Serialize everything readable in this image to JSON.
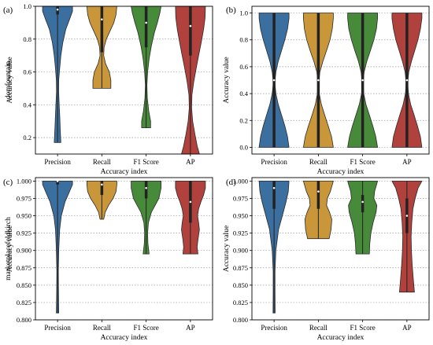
{
  "figure": {
    "ylabel_common": "Accuracy value",
    "xlabel_common": "Accuracy index"
  },
  "chart_data": [
    {
      "type": "violin",
      "panel_label": "(a)",
      "side_label": "domfountain",
      "xlabel": "Accuracy index",
      "ylabel": "Accuracy value",
      "ylim": [
        0.1,
        1.0
      ],
      "yticks": [
        "0.2",
        "0.4",
        "0.6",
        "0.8",
        "1.0"
      ],
      "grid": "horizontal-dotted",
      "categories": [
        "Precision",
        "Recall",
        "F1 Score",
        "AP"
      ],
      "series": [
        {
          "name": "Precision",
          "color": "#3a6f9f",
          "min": 0.17,
          "max": 1.0,
          "q1": 0.95,
          "q3": 1.0,
          "median": 0.98,
          "profile": [
            [
              0.17,
              0.22
            ],
            [
              0.25,
              0.18
            ],
            [
              0.32,
              0.15
            ],
            [
              0.4,
              0.11
            ],
            [
              0.48,
              0.07
            ],
            [
              0.55,
              0.08
            ],
            [
              0.62,
              0.14
            ],
            [
              0.7,
              0.22
            ],
            [
              0.78,
              0.35
            ],
            [
              0.86,
              0.55
            ],
            [
              0.92,
              0.8
            ],
            [
              0.97,
              1.0
            ],
            [
              1.0,
              1.0
            ]
          ]
        },
        {
          "name": "Recall",
          "color": "#c9963a",
          "min": 0.5,
          "max": 1.0,
          "q1": 0.72,
          "q3": 1.0,
          "median": 0.92,
          "profile": [
            [
              0.5,
              0.6
            ],
            [
              0.55,
              0.6
            ],
            [
              0.6,
              0.5
            ],
            [
              0.65,
              0.25
            ],
            [
              0.7,
              0.12
            ],
            [
              0.75,
              0.15
            ],
            [
              0.8,
              0.3
            ],
            [
              0.85,
              0.55
            ],
            [
              0.9,
              0.8
            ],
            [
              0.95,
              0.95
            ],
            [
              1.0,
              1.0
            ]
          ]
        },
        {
          "name": "F1 Score",
          "color": "#478a3a",
          "min": 0.26,
          "max": 1.0,
          "q1": 0.75,
          "q3": 1.0,
          "median": 0.9,
          "profile": [
            [
              0.26,
              0.3
            ],
            [
              0.3,
              0.3
            ],
            [
              0.36,
              0.18
            ],
            [
              0.44,
              0.08
            ],
            [
              0.52,
              0.05
            ],
            [
              0.6,
              0.1
            ],
            [
              0.68,
              0.2
            ],
            [
              0.76,
              0.35
            ],
            [
              0.84,
              0.55
            ],
            [
              0.9,
              0.75
            ],
            [
              0.96,
              0.92
            ],
            [
              1.0,
              1.0
            ]
          ]
        },
        {
          "name": "AP",
          "color": "#b0413c",
          "min": 0.1,
          "max": 1.0,
          "q1": 0.7,
          "q3": 1.0,
          "median": 0.88,
          "profile": [
            [
              0.1,
              0.6
            ],
            [
              0.15,
              0.45
            ],
            [
              0.22,
              0.3
            ],
            [
              0.3,
              0.15
            ],
            [
              0.38,
              0.08
            ],
            [
              0.46,
              0.1
            ],
            [
              0.54,
              0.22
            ],
            [
              0.62,
              0.38
            ],
            [
              0.7,
              0.55
            ],
            [
              0.78,
              0.72
            ],
            [
              0.86,
              0.88
            ],
            [
              0.93,
              0.98
            ],
            [
              1.0,
              1.0
            ]
          ]
        }
      ]
    },
    {
      "type": "violin",
      "panel_label": "(b)",
      "side_label": "",
      "xlabel": "Accuracy index",
      "ylabel": "Accuracy value",
      "ylim": [
        -0.05,
        1.05
      ],
      "yticks": [
        "0.0",
        "0.2",
        "0.4",
        "0.6",
        "0.8",
        "1.0"
      ],
      "grid": "horizontal-dotted",
      "categories": [
        "Precision",
        "Recall",
        "F1 Score",
        "AP"
      ],
      "series": [
        {
          "name": "Precision",
          "color": "#3a6f9f",
          "min": 0.0,
          "max": 1.0,
          "q1": 0.0,
          "q3": 1.0,
          "median": 0.5,
          "profile": [
            [
              0.0,
              1.0
            ],
            [
              0.08,
              0.9
            ],
            [
              0.16,
              0.72
            ],
            [
              0.24,
              0.5
            ],
            [
              0.32,
              0.28
            ],
            [
              0.4,
              0.12
            ],
            [
              0.48,
              0.05
            ],
            [
              0.56,
              0.12
            ],
            [
              0.64,
              0.28
            ],
            [
              0.72,
              0.5
            ],
            [
              0.8,
              0.72
            ],
            [
              0.88,
              0.9
            ],
            [
              0.96,
              1.0
            ],
            [
              1.0,
              1.0
            ]
          ]
        },
        {
          "name": "Recall",
          "color": "#c9963a",
          "min": 0.0,
          "max": 1.0,
          "q1": 0.0,
          "q3": 1.0,
          "median": 0.5,
          "profile": [
            [
              0.0,
              1.0
            ],
            [
              0.08,
              0.88
            ],
            [
              0.16,
              0.66
            ],
            [
              0.24,
              0.42
            ],
            [
              0.32,
              0.2
            ],
            [
              0.4,
              0.06
            ],
            [
              0.48,
              0.03
            ],
            [
              0.56,
              0.1
            ],
            [
              0.64,
              0.3
            ],
            [
              0.72,
              0.55
            ],
            [
              0.8,
              0.78
            ],
            [
              0.88,
              0.93
            ],
            [
              0.96,
              1.0
            ],
            [
              1.0,
              1.0
            ]
          ]
        },
        {
          "name": "F1 Score",
          "color": "#478a3a",
          "min": 0.0,
          "max": 1.0,
          "q1": 0.0,
          "q3": 1.0,
          "median": 0.5,
          "profile": [
            [
              0.0,
              1.0
            ],
            [
              0.08,
              0.88
            ],
            [
              0.16,
              0.68
            ],
            [
              0.24,
              0.45
            ],
            [
              0.32,
              0.22
            ],
            [
              0.4,
              0.07
            ],
            [
              0.48,
              0.03
            ],
            [
              0.56,
              0.1
            ],
            [
              0.64,
              0.28
            ],
            [
              0.72,
              0.52
            ],
            [
              0.8,
              0.75
            ],
            [
              0.88,
              0.92
            ],
            [
              0.96,
              1.0
            ],
            [
              1.0,
              1.0
            ]
          ]
        },
        {
          "name": "AP",
          "color": "#b0413c",
          "min": 0.0,
          "max": 1.0,
          "q1": 0.0,
          "q3": 1.0,
          "median": 0.5,
          "profile": [
            [
              0.0,
              1.0
            ],
            [
              0.08,
              0.9
            ],
            [
              0.16,
              0.7
            ],
            [
              0.24,
              0.48
            ],
            [
              0.32,
              0.25
            ],
            [
              0.4,
              0.1
            ],
            [
              0.48,
              0.05
            ],
            [
              0.56,
              0.12
            ],
            [
              0.64,
              0.3
            ],
            [
              0.72,
              0.52
            ],
            [
              0.8,
              0.74
            ],
            [
              0.88,
              0.9
            ],
            [
              0.96,
              1.0
            ],
            [
              1.0,
              1.0
            ]
          ]
        }
      ]
    },
    {
      "type": "violin",
      "panel_label": "(c)",
      "side_label": "marketplacefeldkirch",
      "xlabel": "Accuracy index",
      "ylabel": "Accuracy value",
      "ylim": [
        0.8,
        1.005
      ],
      "yticks": [
        "0.800",
        "0.825",
        "0.850",
        "0.875",
        "0.900",
        "0.925",
        "0.950",
        "0.975",
        "1.000"
      ],
      "grid": "horizontal-dotted",
      "categories": [
        "Precision",
        "Recall",
        "F1 Score",
        "AP"
      ],
      "series": [
        {
          "name": "Precision",
          "color": "#3a6f9f",
          "min": 0.81,
          "max": 1.0,
          "q1": 0.995,
          "q3": 1.0,
          "median": 1.0,
          "profile": [
            [
              0.81,
              0.08
            ],
            [
              0.84,
              0.06
            ],
            [
              0.87,
              0.05
            ],
            [
              0.9,
              0.08
            ],
            [
              0.93,
              0.14
            ],
            [
              0.95,
              0.25
            ],
            [
              0.97,
              0.5
            ],
            [
              0.985,
              0.8
            ],
            [
              0.995,
              1.0
            ],
            [
              1.0,
              1.0
            ]
          ]
        },
        {
          "name": "Recall",
          "color": "#c9963a",
          "min": 0.945,
          "max": 1.0,
          "q1": 0.98,
          "q3": 1.0,
          "median": 0.995,
          "profile": [
            [
              0.945,
              0.12
            ],
            [
              0.955,
              0.22
            ],
            [
              0.965,
              0.45
            ],
            [
              0.975,
              0.75
            ],
            [
              0.985,
              0.95
            ],
            [
              0.995,
              1.0
            ],
            [
              1.0,
              1.0
            ]
          ]
        },
        {
          "name": "F1 Score",
          "color": "#478a3a",
          "min": 0.895,
          "max": 1.0,
          "q1": 0.975,
          "q3": 1.0,
          "median": 0.99,
          "profile": [
            [
              0.895,
              0.2
            ],
            [
              0.91,
              0.12
            ],
            [
              0.925,
              0.1
            ],
            [
              0.94,
              0.15
            ],
            [
              0.955,
              0.35
            ],
            [
              0.965,
              0.6
            ],
            [
              0.975,
              0.85
            ],
            [
              0.99,
              1.0
            ],
            [
              1.0,
              1.0
            ]
          ]
        },
        {
          "name": "AP",
          "color": "#b0413c",
          "min": 0.895,
          "max": 1.0,
          "q1": 0.94,
          "q3": 1.0,
          "median": 0.97,
          "profile": [
            [
              0.895,
              0.5
            ],
            [
              0.905,
              0.45
            ],
            [
              0.915,
              0.5
            ],
            [
              0.93,
              0.6
            ],
            [
              0.94,
              0.55
            ],
            [
              0.95,
              0.48
            ],
            [
              0.96,
              0.55
            ],
            [
              0.97,
              0.7
            ],
            [
              0.98,
              0.88
            ],
            [
              0.99,
              1.0
            ],
            [
              1.0,
              1.0
            ]
          ]
        }
      ]
    },
    {
      "type": "violin",
      "panel_label": "(d)",
      "side_label": "",
      "xlabel": "Accuracy index",
      "ylabel": "Accuracy value",
      "ylim": [
        0.8,
        1.005
      ],
      "yticks": [
        "0.800",
        "0.825",
        "0.850",
        "0.875",
        "0.900",
        "0.925",
        "0.950",
        "0.975",
        "1.000"
      ],
      "grid": "horizontal-dotted",
      "categories": [
        "Precision",
        "Recall",
        "F1 Score",
        "AP"
      ],
      "series": [
        {
          "name": "Precision",
          "color": "#3a6f9f",
          "min": 0.81,
          "max": 1.0,
          "q1": 0.96,
          "q3": 1.0,
          "median": 0.99,
          "profile": [
            [
              0.81,
              0.07
            ],
            [
              0.84,
              0.06
            ],
            [
              0.87,
              0.06
            ],
            [
              0.9,
              0.12
            ],
            [
              0.93,
              0.3
            ],
            [
              0.95,
              0.55
            ],
            [
              0.97,
              0.8
            ],
            [
              0.985,
              0.95
            ],
            [
              1.0,
              1.0
            ]
          ]
        },
        {
          "name": "Recall",
          "color": "#c9963a",
          "min": 0.917,
          "max": 1.0,
          "q1": 0.96,
          "q3": 1.0,
          "median": 0.985,
          "profile": [
            [
              0.917,
              0.72
            ],
            [
              0.93,
              0.85
            ],
            [
              0.945,
              0.9
            ],
            [
              0.955,
              0.75
            ],
            [
              0.965,
              0.55
            ],
            [
              0.975,
              0.6
            ],
            [
              0.985,
              0.8
            ],
            [
              1.0,
              1.0
            ]
          ]
        },
        {
          "name": "F1 Score",
          "color": "#478a3a",
          "min": 0.895,
          "max": 1.0,
          "q1": 0.955,
          "q3": 0.98,
          "median": 0.97,
          "profile": [
            [
              0.895,
              0.45
            ],
            [
              0.91,
              0.48
            ],
            [
              0.925,
              0.55
            ],
            [
              0.94,
              0.7
            ],
            [
              0.955,
              0.9
            ],
            [
              0.965,
              0.95
            ],
            [
              0.975,
              0.75
            ],
            [
              0.985,
              0.8
            ],
            [
              1.0,
              1.0
            ]
          ]
        },
        {
          "name": "AP",
          "color": "#b0413c",
          "min": 0.84,
          "max": 1.0,
          "q1": 0.925,
          "q3": 0.975,
          "median": 0.95,
          "profile": [
            [
              0.84,
              0.5
            ],
            [
              0.86,
              0.42
            ],
            [
              0.88,
              0.35
            ],
            [
              0.9,
              0.3
            ],
            [
              0.92,
              0.28
            ],
            [
              0.94,
              0.32
            ],
            [
              0.96,
              0.4
            ],
            [
              0.975,
              0.55
            ],
            [
              0.99,
              0.75
            ],
            [
              1.0,
              1.0
            ]
          ]
        }
      ]
    }
  ]
}
